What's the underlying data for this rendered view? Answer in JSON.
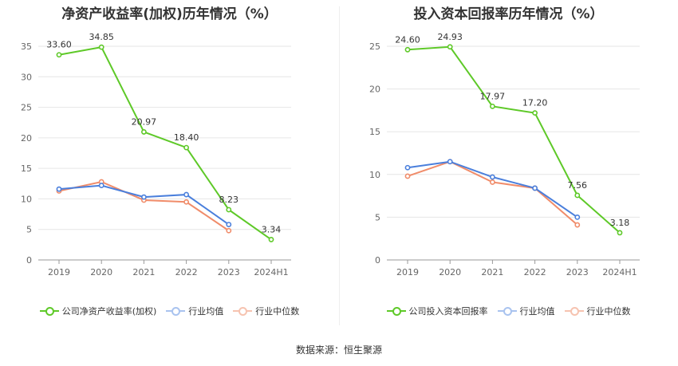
{
  "source": "数据来源：恒生聚源",
  "colors": {
    "company": "#5ec928",
    "avg": "#4a7fdc",
    "median": "#f08c6a",
    "grid": "#e6e6e6",
    "axis": "#666666"
  },
  "chart_data": [
    {
      "type": "line",
      "title": "净资产收益率(加权)历年情况（%）",
      "categories": [
        "2019",
        "2020",
        "2021",
        "2022",
        "2023",
        "2024H1"
      ],
      "ylim": [
        0,
        35
      ],
      "yticks": [
        0,
        5,
        10,
        15,
        20,
        25,
        30,
        35
      ],
      "grid": true,
      "legend_position": "bottom",
      "series": [
        {
          "name": "公司净资产收益率(加权)",
          "key": "company",
          "values": [
            33.6,
            34.85,
            20.97,
            18.4,
            8.23,
            3.34
          ],
          "labels": [
            "33.60",
            "34.85",
            "20.97",
            "18.40",
            "8.23",
            "3.34"
          ]
        },
        {
          "name": "行业均值",
          "key": "avg",
          "values": [
            11.6,
            12.2,
            10.3,
            10.7,
            5.8,
            null
          ]
        },
        {
          "name": "行业中位数",
          "key": "median",
          "values": [
            11.3,
            12.8,
            9.8,
            9.5,
            4.8,
            null
          ]
        }
      ]
    },
    {
      "type": "line",
      "title": "投入资本回报率历年情况（%）",
      "categories": [
        "2019",
        "2020",
        "2021",
        "2022",
        "2023",
        "2024H1"
      ],
      "ylim": [
        0,
        25
      ],
      "yticks": [
        0,
        5,
        10,
        15,
        20,
        25
      ],
      "grid": true,
      "legend_position": "bottom",
      "series": [
        {
          "name": "公司投入资本回报率",
          "key": "company",
          "values": [
            24.6,
            24.93,
            17.97,
            17.2,
            7.56,
            3.18
          ],
          "labels": [
            "24.60",
            "24.93",
            "17.97",
            "17.20",
            "7.56",
            "3.18"
          ]
        },
        {
          "name": "行业均值",
          "key": "avg",
          "values": [
            10.8,
            11.5,
            9.7,
            8.4,
            5.0,
            null
          ]
        },
        {
          "name": "行业中位数",
          "key": "median",
          "values": [
            9.8,
            11.5,
            9.1,
            8.4,
            4.1,
            null
          ]
        }
      ]
    }
  ]
}
